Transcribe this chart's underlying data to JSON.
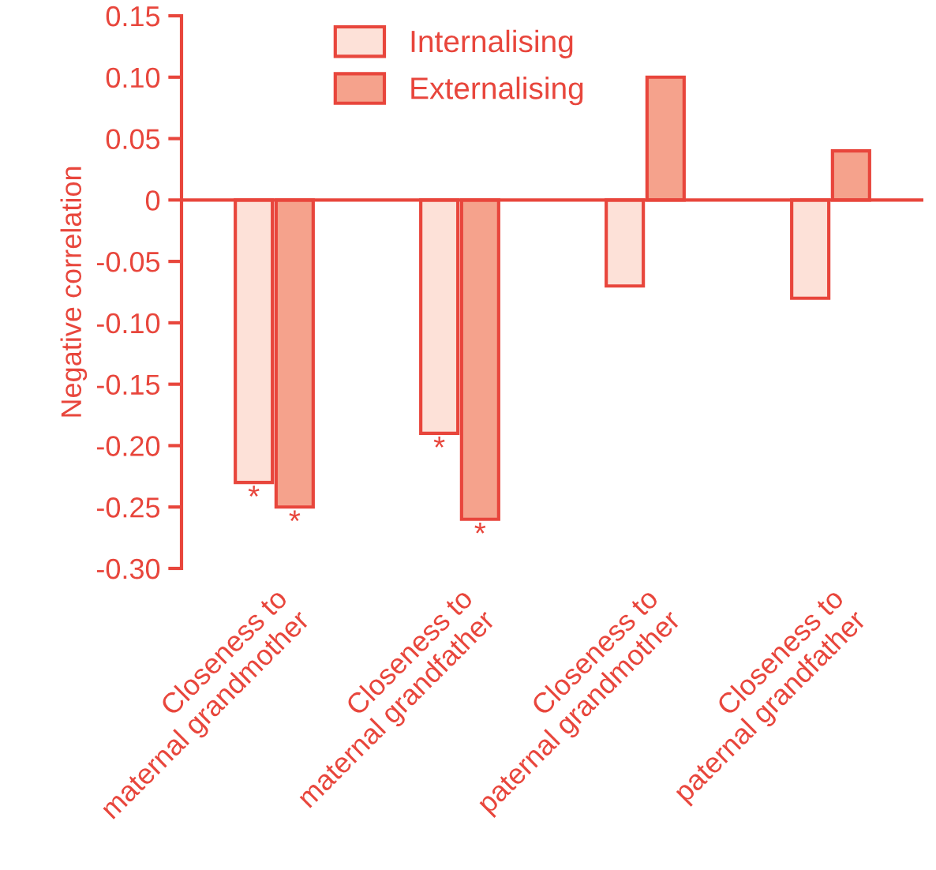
{
  "chart_data": {
    "type": "bar",
    "ylabel": "Negative correlation",
    "categories": [
      "Closeness to\nmaternal grandmother",
      "Closeness to\nmaternal grandfather",
      "Closeness to\npaternal grandmother",
      "Closeness to\npaternal grandfather"
    ],
    "series": [
      {
        "name": "Internalising",
        "color": "#fde1d8",
        "values": [
          -0.23,
          -0.19,
          -0.07,
          -0.08
        ],
        "value_labels": [
          "*",
          "*",
          null,
          null
        ]
      },
      {
        "name": "Externalising",
        "color": "#f5a28c",
        "values": [
          -0.25,
          -0.26,
          0.1,
          0.04
        ],
        "value_labels": [
          "*",
          "*",
          null,
          null
        ]
      }
    ],
    "ylim": [
      -0.3,
      0.15
    ],
    "yticks": [
      {
        "value": -0.3,
        "label": "-0.30"
      },
      {
        "value": -0.25,
        "label": "-0.25"
      },
      {
        "value": -0.2,
        "label": "-0.20"
      },
      {
        "value": -0.15,
        "label": "-0.15"
      },
      {
        "value": -0.1,
        "label": "-0.10"
      },
      {
        "value": -0.05,
        "label": "-0.05"
      },
      0,
      {
        "value": 0.05,
        "label": "0.05"
      },
      {
        "value": 0.1,
        "label": "0.10"
      },
      {
        "value": 0.15,
        "label": "0.15"
      }
    ],
    "ref_lines": [
      {
        "axis": "y",
        "value": 0,
        "color": "#e8463c"
      }
    ],
    "legend": "top left",
    "grid": false
  }
}
